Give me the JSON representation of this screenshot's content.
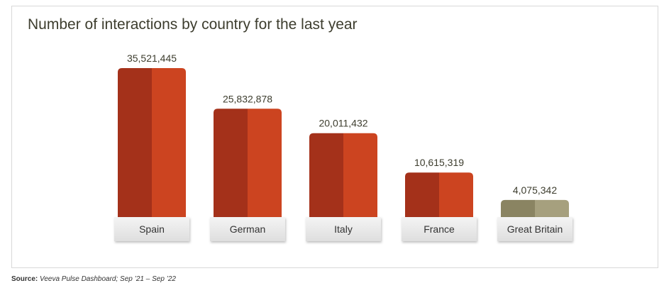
{
  "chart_data": {
    "type": "bar",
    "title": "Number of interactions by country for the last year",
    "categories": [
      "Spain",
      "German",
      "Italy",
      "France",
      "Great Britain"
    ],
    "values": [
      35521445,
      25832878,
      20011432,
      10615319,
      4075342
    ],
    "value_labels": [
      "35,521,445",
      "25,832,878",
      "20,011,432",
      "10,615,319",
      "4,075,342"
    ],
    "bar_colors": [
      {
        "dark": "#a4311a",
        "light": "#cc4420"
      },
      {
        "dark": "#a4311a",
        "light": "#cc4420"
      },
      {
        "dark": "#a4311a",
        "light": "#cc4420"
      },
      {
        "dark": "#a4311a",
        "light": "#cc4420"
      },
      {
        "dark": "#8a8462",
        "light": "#a6a07e"
      }
    ],
    "ylim": [
      0,
      35521445
    ],
    "grid": false,
    "legend": "none"
  },
  "source": {
    "label": "Source:",
    "text": "Veeva Pulse Dashboard; Sep ’21 – Sep ’22"
  }
}
